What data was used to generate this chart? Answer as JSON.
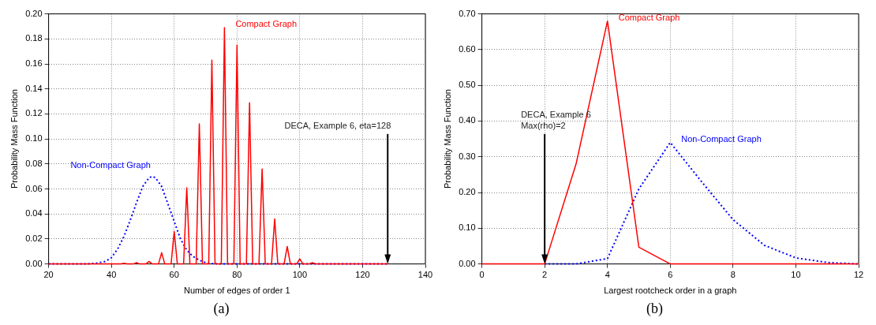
{
  "chart_data": [
    {
      "type": "line",
      "xlabel": "Number of edges of order 1",
      "ylabel": "Probability Mass Function",
      "xlim": [
        20,
        140
      ],
      "xticks": [
        20,
        40,
        60,
        80,
        100,
        120,
        140
      ],
      "ylim": [
        0,
        0.2
      ],
      "yticks": [
        {
          "value": 0,
          "label": "0.00"
        },
        {
          "value": 0.02,
          "label": "0.02"
        },
        {
          "value": 0.04,
          "label": "0.04"
        },
        {
          "value": 0.06,
          "label": "0.06"
        },
        {
          "value": 0.08,
          "label": "0.08"
        },
        {
          "value": 0.1,
          "label": "0.10"
        },
        {
          "value": 0.12,
          "label": "0.12"
        },
        {
          "value": 0.14,
          "label": "0.14"
        },
        {
          "value": 0.16,
          "label": "0.16"
        },
        {
          "value": 0.18,
          "label": "0.18"
        },
        {
          "value": 0.2,
          "label": "0.20"
        }
      ],
      "grid": true,
      "legend": false,
      "marker": "none",
      "annotations": [
        {
          "text": "DECA, Example 6, eta=128",
          "x": 128,
          "y": 0
        },
        "(a)"
      ],
      "series": [
        {
          "name": "Compact Graph",
          "color": "#ff0000",
          "line_style": "solid",
          "x": [
            20,
            43,
            44,
            45,
            47,
            48,
            49,
            51,
            52,
            53,
            55,
            56,
            57,
            59,
            60,
            61,
            63,
            64,
            65,
            67,
            68,
            69,
            71,
            72,
            73,
            75,
            76,
            77,
            79,
            80,
            81,
            83,
            84,
            85,
            87,
            88,
            89,
            91,
            92,
            93,
            95,
            96,
            97,
            99,
            100,
            101,
            103,
            104,
            105,
            128
          ],
          "values": [
            0,
            0,
            0.0005,
            0,
            0,
            0.001,
            0,
            0,
            0.002,
            0,
            0,
            0.009,
            0,
            0,
            0.026,
            0,
            0,
            0.061,
            0,
            0,
            0.112,
            0,
            0,
            0.163,
            0,
            0,
            0.189,
            0,
            0,
            0.175,
            0,
            0,
            0.129,
            0,
            0,
            0.076,
            0,
            0,
            0.036,
            0,
            0,
            0.014,
            0,
            0,
            0.004,
            0,
            0,
            0.001,
            0,
            0
          ]
        },
        {
          "name": "Non-Compact Graph",
          "color": "#0000ff",
          "line_style": "dotted",
          "x": [
            20,
            32,
            35,
            38,
            40,
            42,
            44,
            46,
            48,
            50,
            52,
            53,
            54,
            56,
            58,
            60,
            62,
            64,
            66,
            68,
            70,
            72,
            75,
            128
          ],
          "values": [
            0,
            0,
            0.0005,
            0.002,
            0.005,
            0.012,
            0.022,
            0.035,
            0.049,
            0.062,
            0.069,
            0.07,
            0.069,
            0.062,
            0.048,
            0.034,
            0.02,
            0.011,
            0.006,
            0.003,
            0.001,
            0.0003,
            0,
            0
          ]
        }
      ]
    },
    {
      "type": "line",
      "xlabel": "Largest rootcheck order in a graph",
      "ylabel": "Probability Mass Function",
      "xlim": [
        0,
        12
      ],
      "xticks": [
        0,
        2,
        4,
        6,
        8,
        10,
        12
      ],
      "ylim": [
        0,
        0.7
      ],
      "yticks": [
        {
          "value": 0,
          "label": "0.00"
        },
        {
          "value": 0.1,
          "label": "0.10"
        },
        {
          "value": 0.2,
          "label": "0.20"
        },
        {
          "value": 0.3,
          "label": "0.30"
        },
        {
          "value": 0.4,
          "label": "0.40"
        },
        {
          "value": 0.5,
          "label": "0.50"
        },
        {
          "value": 0.6,
          "label": "0.60"
        },
        {
          "value": 0.7,
          "label": "0.70"
        }
      ],
      "grid": true,
      "legend": false,
      "marker": "none",
      "annotations": [
        {
          "text": "DECA, Example 6\nMax(rho)=2",
          "x": 2,
          "y": 0
        },
        "(b)"
      ],
      "series": [
        {
          "name": "Compact Graph",
          "color": "#ff0000",
          "line_style": "solid",
          "x": [
            0,
            1,
            2,
            3,
            4,
            5,
            6,
            7,
            8,
            9,
            10,
            11,
            12
          ],
          "values": [
            0,
            0,
            0,
            0.28,
            0.68,
            0.047,
            0,
            0,
            0,
            0,
            0,
            0,
            0
          ]
        },
        {
          "name": "Non-Compact Graph",
          "color": "#0000ff",
          "line_style": "dotted",
          "x": [
            2,
            3,
            4,
            5,
            6,
            7,
            8,
            9,
            10,
            11,
            12
          ],
          "values": [
            0,
            0,
            0.015,
            0.21,
            0.34,
            0.23,
            0.124,
            0.052,
            0.017,
            0.004,
            0
          ]
        }
      ]
    }
  ]
}
